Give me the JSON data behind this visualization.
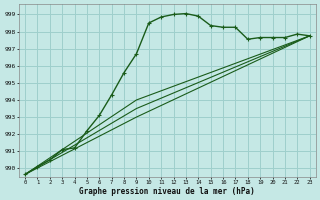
{
  "title": "Graphe pression niveau de la mer (hPa)",
  "background_color": "#c5e8e5",
  "grid_color": "#9ecfcc",
  "line_color": "#1a5c1a",
  "xlim": [
    -0.5,
    23.5
  ],
  "ylim": [
    989.5,
    999.6
  ],
  "yticks": [
    990,
    991,
    992,
    993,
    994,
    995,
    996,
    997,
    998,
    999
  ],
  "xticks": [
    0,
    1,
    2,
    3,
    4,
    5,
    6,
    7,
    8,
    9,
    10,
    11,
    12,
    13,
    14,
    15,
    16,
    17,
    18,
    19,
    20,
    21,
    22,
    23
  ],
  "line1_x": [
    0,
    1,
    2,
    3,
    4,
    5,
    6,
    7,
    8,
    9,
    10,
    11,
    12,
    13,
    14,
    15,
    16,
    17,
    18,
    19,
    20,
    21,
    22,
    23
  ],
  "line1_y": [
    989.65,
    990.1,
    990.5,
    991.1,
    991.2,
    992.2,
    993.1,
    994.3,
    995.6,
    996.7,
    998.5,
    998.85,
    999.0,
    999.05,
    998.9,
    998.35,
    998.25,
    998.25,
    997.55,
    997.65,
    997.65,
    997.65,
    997.85,
    997.75
  ],
  "line2_x": [
    0,
    9,
    23
  ],
  "line2_y": [
    989.65,
    993.0,
    997.75
  ],
  "line3_x": [
    0,
    9,
    23
  ],
  "line3_y": [
    989.65,
    993.5,
    997.75
  ],
  "line4_x": [
    0,
    9,
    23
  ],
  "line4_y": [
    989.65,
    994.0,
    997.75
  ]
}
